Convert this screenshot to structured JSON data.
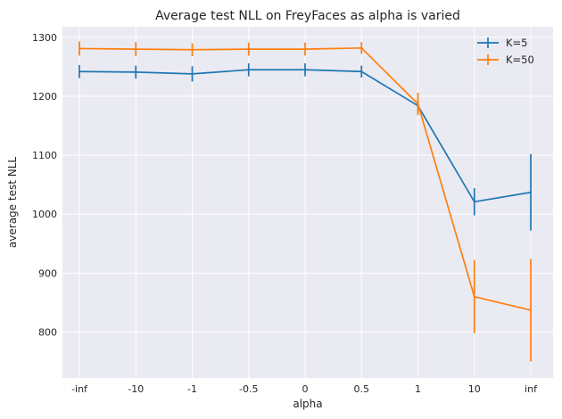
{
  "chart_data": {
    "type": "line",
    "title": "Average test NLL on FreyFaces as alpha is varied",
    "xlabel": "alpha",
    "ylabel": "average test NLL",
    "categories": [
      "-inf",
      "-10",
      "-1",
      "-0.5",
      "0",
      "0.5",
      "1",
      "10",
      "inf"
    ],
    "yticks": [
      800,
      900,
      1000,
      1100,
      1200,
      1300
    ],
    "ylim": [
      722,
      1318
    ],
    "grid": true,
    "legend_position": "top-right",
    "series": [
      {
        "name": "K=5",
        "color": "#1f77b4",
        "values": [
          1242,
          1241,
          1238,
          1245,
          1245,
          1242,
          1184,
          1021,
          1037
        ],
        "errors": [
          11,
          11,
          13,
          11,
          11,
          10,
          10,
          23,
          65
        ]
      },
      {
        "name": "K=50",
        "color": "#ff7f0e",
        "values": [
          1281,
          1280,
          1279,
          1280,
          1280,
          1282,
          1187,
          860,
          837
        ],
        "errors": [
          12,
          12,
          11,
          11,
          11,
          10,
          19,
          62,
          87
        ]
      }
    ]
  }
}
